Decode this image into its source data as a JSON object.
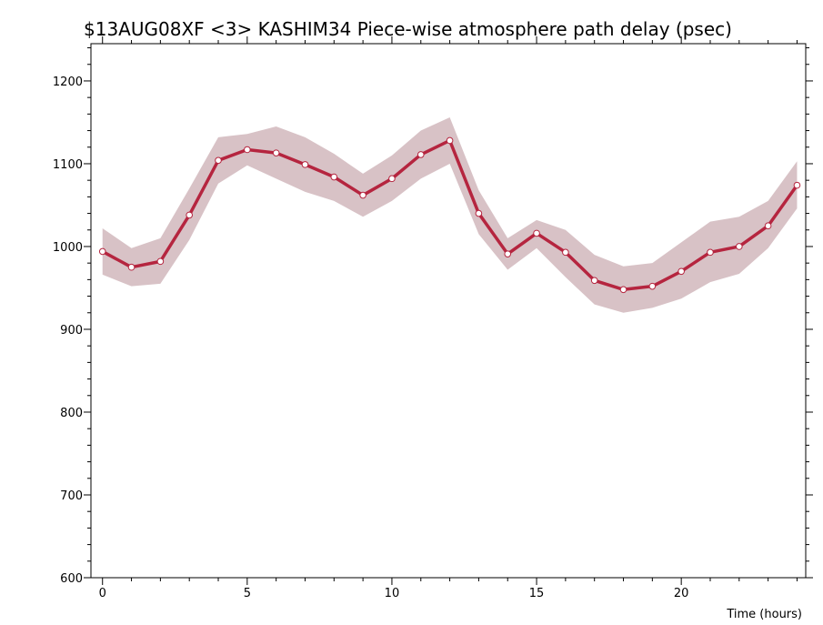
{
  "chart_data": {
    "type": "line",
    "title": "$13AUG08XF <3>  KASHIM34  Piece-wise atmosphere path delay (psec)",
    "xlabel": "Time (hours)",
    "ylabel": "",
    "xlim": [
      -0.4,
      24.3
    ],
    "ylim": [
      600,
      1245
    ],
    "x_ticks": [
      0,
      5,
      10,
      15,
      20
    ],
    "x_tick_labels": [
      "0",
      "5",
      "10",
      "15",
      "20"
    ],
    "y_ticks": [
      600,
      700,
      800,
      900,
      1000,
      1100,
      1200
    ],
    "y_tick_labels": [
      "600",
      "700",
      "800",
      "900",
      "1000",
      "1100",
      "1200"
    ],
    "grid": false,
    "colors": {
      "line": "#b5253f",
      "band": "#d8c2c6",
      "marker_fill": "#ffffff"
    },
    "series": [
      {
        "x": [
          0,
          1,
          2,
          3,
          4,
          5,
          6,
          7,
          8,
          9,
          10,
          11,
          12,
          13,
          14,
          15,
          16,
          17,
          18,
          19,
          20,
          21,
          22,
          23,
          24
        ],
        "values": [
          994,
          975,
          982,
          1038,
          1104,
          1117,
          1113,
          1099,
          1084,
          1062,
          1082,
          1111,
          1128,
          1040,
          991,
          1016,
          993,
          959,
          948,
          952,
          970,
          993,
          1000,
          1025,
          1074
        ],
        "upper": [
          1022,
          998,
          1010,
          1070,
          1132,
          1136,
          1145,
          1132,
          1112,
          1088,
          1110,
          1140,
          1156,
          1068,
          1010,
          1032,
          1020,
          990,
          976,
          980,
          1005,
          1030,
          1036,
          1055,
          1103
        ],
        "lower": [
          966,
          952,
          955,
          1008,
          1076,
          1098,
          1082,
          1066,
          1055,
          1036,
          1055,
          1082,
          1100,
          1015,
          972,
          998,
          963,
          930,
          920,
          926,
          937,
          957,
          967,
          998,
          1046
        ]
      }
    ]
  }
}
